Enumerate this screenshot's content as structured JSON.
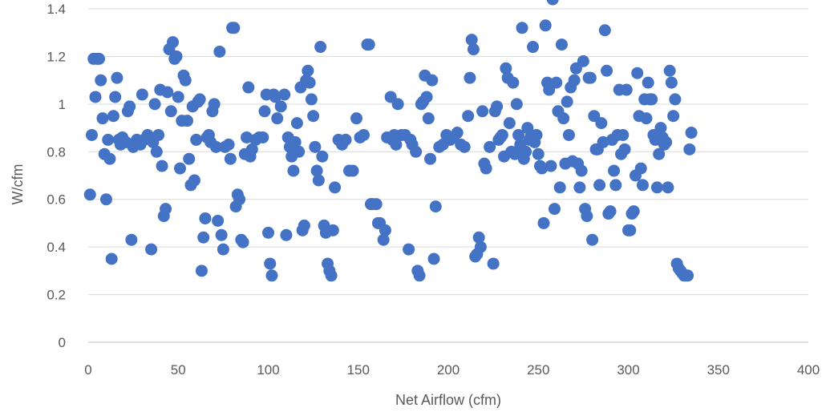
{
  "chart_data": {
    "type": "scatter",
    "title": "",
    "xlabel": "Net Airflow (cfm)",
    "ylabel": "W/cfm",
    "xlim": [
      0,
      400
    ],
    "ylim": [
      0,
      1.4
    ],
    "x_ticks": [
      "0",
      "50",
      "100",
      "150",
      "200",
      "250",
      "300",
      "350",
      "400"
    ],
    "y_ticks": [
      "0",
      "0.2",
      "0.4",
      "0.6",
      "0.8",
      "1",
      "1.2",
      "1.4"
    ],
    "grid": "horizontal",
    "legend": "none",
    "marker_color": "#4472C4",
    "points": [
      [
        1,
        0.62
      ],
      [
        2,
        0.87
      ],
      [
        3,
        1.19
      ],
      [
        4,
        1.03
      ],
      [
        5,
        1.19
      ],
      [
        6,
        1.19
      ],
      [
        7,
        1.1
      ],
      [
        8,
        0.94
      ],
      [
        9,
        0.79
      ],
      [
        10,
        0.6
      ],
      [
        11,
        0.85
      ],
      [
        12,
        0.77
      ],
      [
        13,
        0.35
      ],
      [
        14,
        0.95
      ],
      [
        15,
        1.03
      ],
      [
        16,
        1.11
      ],
      [
        17,
        0.85
      ],
      [
        18,
        0.83
      ],
      [
        19,
        0.86
      ],
      [
        21,
        0.84
      ],
      [
        22,
        0.97
      ],
      [
        23,
        0.99
      ],
      [
        24,
        0.43
      ],
      [
        25,
        0.82
      ],
      [
        27,
        0.85
      ],
      [
        29,
        0.83
      ],
      [
        30,
        1.04
      ],
      [
        31,
        0.85
      ],
      [
        33,
        0.87
      ],
      [
        35,
        0.39
      ],
      [
        36,
        0.84
      ],
      [
        37,
        1.0
      ],
      [
        38,
        0.8
      ],
      [
        39,
        0.87
      ],
      [
        40,
        1.06
      ],
      [
        41,
        0.74
      ],
      [
        42,
        0.53
      ],
      [
        43,
        0.56
      ],
      [
        44,
        1.05
      ],
      [
        45,
        1.23
      ],
      [
        46,
        0.97
      ],
      [
        47,
        1.26
      ],
      [
        48,
        1.19
      ],
      [
        49,
        1.2
      ],
      [
        50,
        1.03
      ],
      [
        51,
        0.73
      ],
      [
        52,
        0.93
      ],
      [
        53,
        1.12
      ],
      [
        54,
        1.1
      ],
      [
        55,
        0.93
      ],
      [
        56,
        0.77
      ],
      [
        57,
        0.66
      ],
      [
        58,
        0.99
      ],
      [
        59,
        0.68
      ],
      [
        60,
        0.85
      ],
      [
        61,
        1.01
      ],
      [
        62,
        1.02
      ],
      [
        63,
        0.3
      ],
      [
        64,
        0.44
      ],
      [
        65,
        0.52
      ],
      [
        66,
        0.86
      ],
      [
        67,
        0.87
      ],
      [
        68,
        0.84
      ],
      [
        69,
        0.97
      ],
      [
        70,
        1.0
      ],
      [
        71,
        0.82
      ],
      [
        72,
        0.51
      ],
      [
        73,
        1.22
      ],
      [
        74,
        0.45
      ],
      [
        75,
        0.39
      ],
      [
        76,
        0.82
      ],
      [
        78,
        0.83
      ],
      [
        79,
        0.77
      ],
      [
        80,
        1.32
      ],
      [
        81,
        1.32
      ],
      [
        82,
        0.57
      ],
      [
        83,
        0.62
      ],
      [
        84,
        0.6
      ],
      [
        85,
        0.43
      ],
      [
        86,
        0.42
      ],
      [
        87,
        0.79
      ],
      [
        88,
        0.86
      ],
      [
        89,
        1.07
      ],
      [
        90,
        0.78
      ],
      [
        91,
        0.81
      ],
      [
        93,
        0.85
      ],
      [
        95,
        0.86
      ],
      [
        97,
        0.86
      ],
      [
        98,
        0.97
      ],
      [
        99,
        1.04
      ],
      [
        100,
        0.46
      ],
      [
        101,
        0.33
      ],
      [
        102,
        0.28
      ],
      [
        103,
        1.04
      ],
      [
        104,
        1.03
      ],
      [
        105,
        0.94
      ],
      [
        107,
        0.99
      ],
      [
        109,
        1.04
      ],
      [
        110,
        0.45
      ],
      [
        111,
        0.86
      ],
      [
        112,
        0.82
      ],
      [
        113,
        0.78
      ],
      [
        114,
        0.72
      ],
      [
        115,
        0.84
      ],
      [
        116,
        0.92
      ],
      [
        117,
        0.8
      ],
      [
        118,
        1.07
      ],
      [
        119,
        0.47
      ],
      [
        120,
        0.49
      ],
      [
        121,
        1.1
      ],
      [
        122,
        1.14
      ],
      [
        123,
        1.09
      ],
      [
        124,
        1.02
      ],
      [
        125,
        0.95
      ],
      [
        126,
        0.82
      ],
      [
        127,
        0.72
      ],
      [
        128,
        0.68
      ],
      [
        129,
        1.24
      ],
      [
        130,
        0.78
      ],
      [
        131,
        0.49
      ],
      [
        132,
        0.46
      ],
      [
        133,
        0.33
      ],
      [
        134,
        0.3
      ],
      [
        135,
        0.28
      ],
      [
        136,
        0.47
      ],
      [
        137,
        0.65
      ],
      [
        139,
        0.85
      ],
      [
        141,
        0.83
      ],
      [
        143,
        0.85
      ],
      [
        145,
        0.72
      ],
      [
        147,
        0.72
      ],
      [
        149,
        0.94
      ],
      [
        151,
        0.86
      ],
      [
        153,
        0.87
      ],
      [
        155,
        1.25
      ],
      [
        156,
        1.25
      ],
      [
        157,
        0.58
      ],
      [
        158,
        0.58
      ],
      [
        160,
        0.58
      ],
      [
        161,
        0.5
      ],
      [
        162,
        0.5
      ],
      [
        164,
        0.43
      ],
      [
        165,
        0.47
      ],
      [
        166,
        0.86
      ],
      [
        168,
        1.03
      ],
      [
        169,
        0.85
      ],
      [
        170,
        0.87
      ],
      [
        171,
        0.83
      ],
      [
        172,
        1.0
      ],
      [
        174,
        0.87
      ],
      [
        176,
        0.87
      ],
      [
        178,
        0.39
      ],
      [
        179,
        0.85
      ],
      [
        180,
        0.83
      ],
      [
        182,
        0.8
      ],
      [
        183,
        0.3
      ],
      [
        184,
        0.28
      ],
      [
        185,
        1.0
      ],
      [
        186,
        1.01
      ],
      [
        187,
        1.12
      ],
      [
        188,
        1.03
      ],
      [
        189,
        0.94
      ],
      [
        190,
        0.77
      ],
      [
        191,
        1.1
      ],
      [
        192,
        0.35
      ],
      [
        193,
        0.57
      ],
      [
        195,
        0.82
      ],
      [
        197,
        0.83
      ],
      [
        199,
        0.87
      ],
      [
        201,
        0.85
      ],
      [
        203,
        0.86
      ],
      [
        205,
        0.88
      ],
      [
        207,
        0.83
      ],
      [
        209,
        0.82
      ],
      [
        211,
        0.95
      ],
      [
        212,
        1.11
      ],
      [
        213,
        1.27
      ],
      [
        214,
        1.23
      ],
      [
        215,
        0.36
      ],
      [
        216,
        0.37
      ],
      [
        217,
        0.44
      ],
      [
        218,
        0.4
      ],
      [
        219,
        0.97
      ],
      [
        220,
        0.75
      ],
      [
        221,
        0.73
      ],
      [
        223,
        0.82
      ],
      [
        225,
        0.33
      ],
      [
        226,
        0.97
      ],
      [
        227,
        0.99
      ],
      [
        228,
        0.85
      ],
      [
        229,
        0.86
      ],
      [
        230,
        0.87
      ],
      [
        231,
        0.78
      ],
      [
        232,
        1.15
      ],
      [
        233,
        1.11
      ],
      [
        234,
        0.92
      ],
      [
        235,
        0.8
      ],
      [
        236,
        1.09
      ],
      [
        237,
        0.79
      ],
      [
        238,
        1.0
      ],
      [
        239,
        0.87
      ],
      [
        240,
        0.83
      ],
      [
        241,
        1.32
      ],
      [
        242,
        0.77
      ],
      [
        243,
        0.8
      ],
      [
        244,
        0.9
      ],
      [
        245,
        0.85
      ],
      [
        246,
        0.87
      ],
      [
        247,
        1.24
      ],
      [
        248,
        0.84
      ],
      [
        249,
        0.87
      ],
      [
        250,
        0.79
      ],
      [
        251,
        0.74
      ],
      [
        252,
        0.73
      ],
      [
        253,
        0.5
      ],
      [
        254,
        1.33
      ],
      [
        255,
        1.09
      ],
      [
        256,
        1.06
      ],
      [
        257,
        0.74
      ],
      [
        258,
        1.44
      ],
      [
        259,
        0.56
      ],
      [
        260,
        1.09
      ],
      [
        261,
        0.97
      ],
      [
        262,
        0.65
      ],
      [
        263,
        1.25
      ],
      [
        264,
        0.94
      ],
      [
        265,
        0.75
      ],
      [
        266,
        1.01
      ],
      [
        267,
        0.87
      ],
      [
        268,
        1.07
      ],
      [
        269,
        0.76
      ],
      [
        270,
        1.1
      ],
      [
        271,
        1.15
      ],
      [
        272,
        0.75
      ],
      [
        273,
        0.65
      ],
      [
        274,
        0.72
      ],
      [
        275,
        1.18
      ],
      [
        276,
        0.56
      ],
      [
        277,
        0.53
      ],
      [
        278,
        1.11
      ],
      [
        279,
        1.11
      ],
      [
        280,
        0.43
      ],
      [
        281,
        0.95
      ],
      [
        282,
        0.81
      ],
      [
        283,
        0.81
      ],
      [
        284,
        0.66
      ],
      [
        285,
        0.92
      ],
      [
        286,
        0.84
      ],
      [
        287,
        1.31
      ],
      [
        288,
        1.14
      ],
      [
        289,
        0.54
      ],
      [
        290,
        0.55
      ],
      [
        291,
        0.85
      ],
      [
        292,
        0.72
      ],
      [
        293,
        0.66
      ],
      [
        294,
        0.87
      ],
      [
        295,
        1.06
      ],
      [
        296,
        0.79
      ],
      [
        297,
        0.87
      ],
      [
        298,
        0.81
      ],
      [
        299,
        1.06
      ],
      [
        300,
        0.47
      ],
      [
        301,
        0.47
      ],
      [
        302,
        0.54
      ],
      [
        303,
        0.55
      ],
      [
        304,
        0.7
      ],
      [
        305,
        1.13
      ],
      [
        306,
        0.95
      ],
      [
        307,
        0.73
      ],
      [
        308,
        0.66
      ],
      [
        309,
        1.02
      ],
      [
        310,
        0.94
      ],
      [
        311,
        1.09
      ],
      [
        312,
        1.02
      ],
      [
        313,
        1.02
      ],
      [
        314,
        0.87
      ],
      [
        315,
        0.85
      ],
      [
        316,
        0.65
      ],
      [
        317,
        0.79
      ],
      [
        318,
        0.9
      ],
      [
        319,
        0.86
      ],
      [
        320,
        0.83
      ],
      [
        321,
        0.84
      ],
      [
        322,
        0.65
      ],
      [
        323,
        1.14
      ],
      [
        324,
        1.09
      ],
      [
        325,
        0.95
      ],
      [
        326,
        1.02
      ],
      [
        327,
        0.33
      ],
      [
        328,
        0.31
      ],
      [
        329,
        0.3
      ],
      [
        330,
        0.29
      ],
      [
        331,
        0.28
      ],
      [
        332,
        0.28
      ],
      [
        333,
        0.28
      ],
      [
        334,
        0.81
      ],
      [
        335,
        0.88
      ]
    ]
  }
}
